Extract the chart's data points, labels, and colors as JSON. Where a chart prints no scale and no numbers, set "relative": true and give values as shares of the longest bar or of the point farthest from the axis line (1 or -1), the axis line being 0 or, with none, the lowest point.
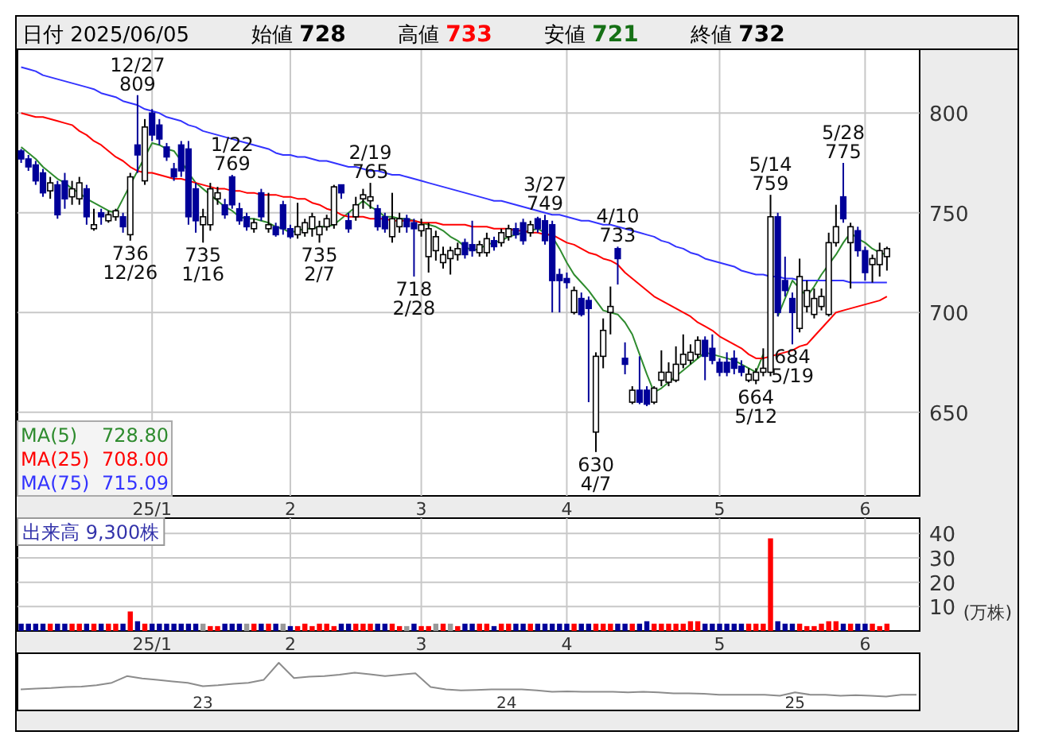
{
  "chart_data": [
    {
      "type": "candlestick",
      "title": "日付 2025/06/05",
      "categories": [
        null,
        null,
        null,
        null,
        null,
        null,
        null,
        null,
        null,
        null,
        null,
        null,
        null,
        null,
        null,
        null,
        null,
        null,
        "25/1",
        null,
        null,
        null,
        null,
        null,
        null,
        null,
        null,
        null,
        null,
        null,
        null,
        null,
        null,
        null,
        null,
        null,
        null,
        "2",
        null,
        null,
        null,
        null,
        null,
        null,
        null,
        null,
        null,
        null,
        null,
        null,
        null,
        null,
        null,
        null,
        null,
        "3",
        null,
        null,
        null,
        null,
        null,
        null,
        null,
        null,
        null,
        null,
        null,
        null,
        null,
        null,
        null,
        null,
        null,
        null,
        null,
        "4",
        null,
        null,
        null,
        null,
        null,
        null,
        null,
        null,
        null,
        null,
        null,
        null,
        null,
        null,
        null,
        null,
        null,
        null,
        null,
        null,
        "5",
        null,
        null,
        null,
        null,
        null,
        null,
        null,
        null,
        null,
        null,
        null,
        null,
        null,
        null,
        null,
        null,
        null,
        null,
        null,
        "6",
        null,
        null,
        null
      ],
      "annotations": [
        "始値 728",
        "高値 733",
        "安値 721",
        "終値 732",
        {
          "text": "736 12/26",
          "y": 736
        },
        {
          "text": "12/27 809",
          "y": 809
        },
        {
          "text": "735 1/16",
          "y": 735
        },
        {
          "text": "1/22 769",
          "y": 769
        },
        {
          "text": "735 2/7",
          "y": 735
        },
        {
          "text": "2/19 765",
          "y": 765
        },
        {
          "text": "718 2/28",
          "y": 718
        },
        {
          "text": "3/27 749",
          "y": 749
        },
        {
          "text": "630 4/7",
          "y": 630
        },
        {
          "text": "4/10 733",
          "y": 733
        },
        {
          "text": "664 5/12",
          "y": 664
        },
        {
          "text": "5/14 759",
          "y": 759
        },
        {
          "text": "684 5/19",
          "y": 684
        },
        {
          "text": "5/28 775",
          "y": 775
        }
      ],
      "ohlc": [
        [
          781,
          782,
          775,
          777
        ],
        [
          777,
          779,
          771,
          773
        ],
        [
          774,
          776,
          764,
          766
        ],
        [
          770,
          772,
          758,
          760
        ],
        [
          761,
          768,
          757,
          765
        ],
        [
          764,
          766,
          747,
          749
        ],
        [
          766,
          770,
          752,
          757
        ],
        [
          758,
          766,
          754,
          762
        ],
        [
          757,
          768,
          754,
          765
        ],
        [
          762,
          764,
          744,
          748
        ],
        [
          742,
          752,
          741,
          744
        ],
        [
          750,
          752,
          744,
          748
        ],
        [
          746,
          751,
          745,
          749
        ],
        [
          748,
          752,
          746,
          751
        ],
        [
          748,
          750,
          740,
          743
        ],
        [
          739,
          770,
          736,
          768
        ],
        [
          784,
          809,
          770,
          779
        ],
        [
          766,
          797,
          764,
          793
        ],
        [
          800,
          802,
          786,
          789
        ],
        [
          794,
          797,
          784,
          787
        ],
        [
          783,
          785,
          776,
          778
        ],
        [
          772,
          775,
          766,
          768
        ],
        [
          784,
          786,
          768,
          771
        ],
        [
          782,
          786,
          744,
          748
        ],
        [
          762,
          765,
          740,
          746
        ],
        [
          744,
          752,
          735,
          748
        ],
        [
          744,
          765,
          741,
          762
        ],
        [
          757,
          763,
          754,
          760
        ],
        [
          754,
          757,
          747,
          749
        ],
        [
          768,
          769,
          752,
          754
        ],
        [
          752,
          755,
          744,
          746
        ],
        [
          748,
          750,
          741,
          743
        ],
        [
          742,
          747,
          740,
          745
        ],
        [
          760,
          762,
          746,
          748
        ],
        [
          742,
          760,
          740,
          744
        ],
        [
          743,
          745,
          738,
          739
        ],
        [
          754,
          756,
          739,
          742
        ],
        [
          742,
          744,
          737,
          738
        ],
        [
          739,
          755,
          737,
          743
        ],
        [
          740,
          747,
          738,
          745
        ],
        [
          742,
          750,
          738,
          748
        ],
        [
          739,
          746,
          735,
          743
        ],
        [
          743,
          749,
          741,
          747
        ],
        [
          744,
          764,
          742,
          763
        ],
        [
          764,
          764,
          757,
          760
        ],
        [
          746,
          750,
          740,
          742
        ],
        [
          748,
          758,
          746,
          754
        ],
        [
          757,
          762,
          752,
          759
        ],
        [
          756,
          765,
          752,
          758
        ],
        [
          752,
          754,
          741,
          743
        ],
        [
          748,
          750,
          740,
          742
        ],
        [
          738,
          760,
          735,
          747
        ],
        [
          743,
          750,
          740,
          747
        ],
        [
          747,
          749,
          740,
          743
        ],
        [
          745,
          747,
          718,
          742
        ],
        [
          741,
          747,
          738,
          744
        ],
        [
          728,
          745,
          720,
          742
        ],
        [
          731,
          741,
          726,
          738
        ],
        [
          725,
          733,
          722,
          729
        ],
        [
          727,
          733,
          719,
          731
        ],
        [
          729,
          735,
          726,
          732
        ],
        [
          735,
          737,
          727,
          729
        ],
        [
          734,
          746,
          728,
          731
        ],
        [
          730,
          736,
          728,
          734
        ],
        [
          730,
          740,
          728,
          737
        ],
        [
          736,
          738,
          731,
          733
        ],
        [
          735,
          742,
          733,
          740
        ],
        [
          738,
          744,
          736,
          742
        ],
        [
          742,
          745,
          737,
          739
        ],
        [
          745,
          747,
          734,
          736
        ],
        [
          740,
          746,
          738,
          744
        ],
        [
          747,
          748,
          740,
          742
        ],
        [
          746,
          749,
          734,
          736
        ],
        [
          744,
          746,
          700,
          716
        ],
        [
          719,
          722,
          700,
          716
        ],
        [
          717,
          720,
          712,
          715
        ],
        [
          700,
          713,
          699,
          711
        ],
        [
          707,
          710,
          698,
          699
        ],
        [
          706,
          708,
          655,
          702
        ],
        [
          640,
          680,
          630,
          678
        ],
        [
          678,
          697,
          672,
          691
        ],
        [
          700,
          713,
          689,
          703
        ],
        [
          732,
          733,
          714,
          727
        ],
        [
          677,
          685,
          669,
          674
        ],
        [
          655,
          663,
          654,
          661
        ],
        [
          661,
          678,
          654,
          655
        ],
        [
          661,
          663,
          653,
          654
        ],
        [
          655,
          663,
          654,
          662
        ],
        [
          666,
          681,
          663,
          670
        ],
        [
          665,
          675,
          663,
          670
        ],
        [
          666,
          683,
          665,
          674
        ],
        [
          674,
          689,
          672,
          679
        ],
        [
          676,
          684,
          674,
          680
        ],
        [
          679,
          688,
          677,
          686
        ],
        [
          686,
          688,
          666,
          678
        ],
        [
          682,
          689,
          674,
          676
        ],
        [
          675,
          677,
          668,
          670
        ],
        [
          675,
          680,
          668,
          670
        ],
        [
          677,
          681,
          669,
          672
        ],
        [
          673,
          676,
          668,
          670
        ],
        [
          666,
          672,
          665,
          669
        ],
        [
          666,
          672,
          664,
          670
        ],
        [
          670,
          682,
          668,
          672
        ],
        [
          670,
          759,
          668,
          748
        ],
        [
          748,
          750,
          698,
          700
        ],
        [
          716,
          728,
          708,
          711
        ],
        [
          707,
          710,
          684,
          700
        ],
        [
          692,
          727,
          690,
          718
        ],
        [
          703,
          716,
          700,
          711
        ],
        [
          699,
          712,
          697,
          707
        ],
        [
          703,
          712,
          701,
          708
        ],
        [
          699,
          740,
          698,
          735
        ],
        [
          735,
          754,
          733,
          743
        ],
        [
          758,
          775,
          745,
          747
        ],
        [
          735,
          745,
          712,
          743
        ],
        [
          741,
          743,
          728,
          731
        ],
        [
          731,
          733,
          716,
          720
        ],
        [
          724,
          729,
          715,
          727
        ],
        [
          724,
          735,
          718,
          731
        ],
        [
          728,
          733,
          721,
          732
        ]
      ],
      "series": [
        {
          "name": "MA(5) 728.80",
          "type": "line",
          "color": "#2e8b2e",
          "values": [
            783,
            780,
            777,
            773,
            770,
            767,
            765,
            762,
            760,
            757,
            755,
            753,
            751,
            750,
            757,
            764,
            771,
            778,
            785,
            784,
            782,
            781,
            776,
            770,
            765,
            762,
            759,
            756,
            753,
            751,
            748,
            747,
            747,
            746,
            745,
            743,
            742,
            740,
            741,
            742,
            742,
            743,
            743,
            744,
            747,
            750,
            753,
            756,
            753,
            751,
            748,
            748,
            747,
            747,
            746,
            745,
            744,
            743,
            741,
            738,
            736,
            733,
            731,
            732,
            734,
            735,
            736,
            738,
            739,
            740,
            741,
            742,
            740,
            738,
            732,
            725,
            719,
            715,
            711,
            706,
            701,
            700,
            699,
            695,
            689,
            679,
            669,
            660,
            662,
            665,
            668,
            671,
            674,
            677,
            680,
            679,
            678,
            677,
            676,
            674,
            672,
            670,
            679,
            null,
            698,
            707,
            716,
            712,
            708,
            713,
            719,
            724,
            729,
            735,
            740,
            737,
            735,
            732,
            730,
            729
          ]
        },
        {
          "name": "MA(25) 708.00",
          "type": "line",
          "color": "#ff0000",
          "values": [
            800,
            799,
            798,
            798,
            797,
            796,
            795,
            794,
            791,
            789,
            786,
            784,
            781,
            778,
            776,
            773,
            771,
            770,
            770,
            769,
            768,
            767,
            767,
            766,
            765,
            764,
            763,
            762,
            762,
            761,
            761,
            760,
            760,
            759,
            759,
            759,
            758,
            758,
            757,
            757,
            755,
            754,
            752,
            751,
            749,
            748,
            748,
            748,
            747,
            747,
            747,
            746,
            746,
            746,
            746,
            745,
            745,
            745,
            744,
            744,
            744,
            744,
            743,
            743,
            743,
            742,
            742,
            742,
            741,
            741,
            740,
            740,
            739,
            739,
            737,
            735,
            734,
            732,
            730,
            729,
            727,
            726,
            724,
            720,
            717,
            714,
            711,
            708,
            706,
            704,
            702,
            700,
            698,
            695,
            693,
            691,
            688,
            686,
            684,
            682,
            679,
            677,
            677,
            678,
            679,
            680,
            681,
            683,
            684,
            688,
            692,
            696,
            700,
            701,
            702,
            703,
            704,
            705,
            706,
            708
          ]
        },
        {
          "name": "MA(75) 715.09",
          "type": "line",
          "color": "#3333ff",
          "values": [
            823,
            822,
            821,
            819,
            818,
            817,
            816,
            815,
            814,
            813,
            812,
            810,
            809,
            808,
            806,
            805,
            804,
            802,
            801,
            800,
            798,
            797,
            796,
            794,
            793,
            791,
            790,
            789,
            788,
            787,
            786,
            785,
            784,
            783,
            782,
            780,
            779,
            779,
            778,
            778,
            777,
            776,
            776,
            775,
            774,
            773,
            773,
            772,
            771,
            771,
            770,
            769,
            769,
            768,
            767,
            766,
            765,
            764,
            763,
            762,
            761,
            760,
            759,
            758,
            757,
            756,
            756,
            755,
            754,
            753,
            752,
            751,
            750,
            749,
            749,
            748,
            747,
            746,
            746,
            745,
            744,
            744,
            743,
            742,
            741,
            740,
            739,
            738,
            736,
            735,
            733,
            732,
            730,
            729,
            727,
            726,
            725,
            724,
            723,
            721,
            720,
            719,
            719,
            718,
            718,
            717,
            717,
            716,
            716,
            716,
            716,
            716,
            716,
            716,
            715,
            715,
            715,
            715,
            715,
            715
          ]
        }
      ],
      "ylim": [
        608,
        832
      ],
      "yticks": [
        650,
        700,
        750,
        800
      ],
      "grid": true,
      "legend": "bottom left"
    },
    {
      "type": "bar",
      "title": "出来高 9,300株",
      "ylabel": "(万株)",
      "categories": [
        null,
        null,
        null,
        null,
        null,
        null,
        null,
        null,
        null,
        null,
        null,
        null,
        null,
        null,
        null,
        null,
        null,
        null,
        "25/1",
        null,
        null,
        null,
        null,
        null,
        null,
        null,
        null,
        null,
        null,
        null,
        null,
        null,
        null,
        null,
        null,
        null,
        null,
        "2",
        null,
        null,
        null,
        null,
        null,
        null,
        null,
        null,
        null,
        null,
        null,
        null,
        null,
        null,
        null,
        null,
        null,
        "3",
        null,
        null,
        null,
        null,
        null,
        null,
        null,
        null,
        null,
        null,
        null,
        null,
        null,
        null,
        null,
        null,
        null,
        null,
        null,
        "4",
        null,
        null,
        null,
        null,
        null,
        null,
        null,
        null,
        null,
        null,
        null,
        null,
        null,
        null,
        null,
        null,
        null,
        null,
        null,
        null,
        "5",
        null,
        null,
        null,
        null,
        null,
        null,
        null,
        null,
        null,
        null,
        null,
        null,
        null,
        null,
        null,
        null,
        null,
        null,
        null,
        "6",
        null,
        null,
        null
      ],
      "values": [
        3,
        3,
        3,
        3,
        3,
        3,
        3,
        3,
        3,
        3,
        3,
        3,
        3,
        3,
        3,
        8,
        4,
        3,
        3,
        3,
        3,
        3,
        3,
        3,
        3,
        3,
        2,
        2,
        3,
        3,
        3,
        3,
        3,
        3,
        3,
        3,
        3,
        2,
        2,
        3,
        2,
        3,
        3,
        2,
        3,
        3,
        3,
        3,
        3,
        3,
        3,
        3,
        2,
        2,
        3,
        2,
        2,
        3,
        3,
        3,
        2,
        3,
        3,
        3,
        3,
        2,
        3,
        3,
        3,
        3,
        3,
        3,
        3,
        3,
        3,
        3,
        3,
        3,
        3,
        3,
        3,
        3,
        3,
        3,
        3,
        3,
        4,
        3,
        3,
        3,
        3,
        3,
        4,
        4,
        3,
        3,
        3,
        3,
        3,
        3,
        3,
        3,
        3,
        38,
        4,
        3,
        3,
        3,
        2,
        2,
        3,
        4,
        4,
        3,
        3,
        3,
        3,
        3,
        2,
        3
      ],
      "colors": [
        "#000099",
        "#000099",
        "#000099",
        "#000099",
        "#ff0000",
        "#000099",
        "#000099",
        "#ff0000",
        "#ff0000",
        "#000099",
        "#ff0000",
        "#000099",
        "#ff0000",
        "#ff0000",
        "#000099",
        "#ff0000",
        "#000099",
        "#ff0000",
        "#000099",
        "#000099",
        "#000099",
        "#000099",
        "#000099",
        "#000099",
        "#000099",
        "#999999",
        "#ff0000",
        "#ff0000",
        "#000099",
        "#000099",
        "#000099",
        "#999999",
        "#ff0000",
        "#000099",
        "#ff0000",
        "#000099",
        "#999999",
        "#000099",
        "#ff0000",
        "#ff0000",
        "#ff0000",
        "#ff0000",
        "#ff0000",
        "#ff0000",
        "#000099",
        "#000099",
        "#ff0000",
        "#ff0000",
        "#ff0000",
        "#000099",
        "#000099",
        "#ff0000",
        "#ff0000",
        "#999999",
        "#000099",
        "#ff0000",
        "#ff0000",
        "#999999",
        "#ff0000",
        "#999999",
        "#ff0000",
        "#000099",
        "#000099",
        "#ff0000",
        "#ff0000",
        "#000099",
        "#ff0000",
        "#ff0000",
        "#000099",
        "#000099",
        "#ff0000",
        "#000099",
        "#000099",
        "#000099",
        "#000099",
        "#000099",
        "#ff0000",
        "#000099",
        "#000099",
        "#ff0000",
        "#ff0000",
        "#ff0000",
        "#000099",
        "#000099",
        "#ff0000",
        "#000099",
        "#000099",
        "#ff0000",
        "#ff0000",
        "#ff0000",
        "#ff0000",
        "#ff0000",
        "#ff0000",
        "#ff0000",
        "#000099",
        "#000099",
        "#000099",
        "#000099",
        "#000099",
        "#000099",
        "#ff0000",
        "#ff0000",
        "#ff0000",
        "#ff0000",
        "#000099",
        "#000099",
        "#000099",
        "#ff0000",
        "#ff0000",
        "#ff0000",
        "#ff0000",
        "#ff0000",
        "#ff0000",
        "#000099",
        "#ff0000",
        "#000099",
        "#000099",
        "#ff0000",
        "#ff0000",
        "#ff0000"
      ],
      "ylim": [
        0,
        45
      ],
      "yticks": [
        10,
        20,
        30,
        40
      ],
      "grid": true
    },
    {
      "type": "line",
      "relative": true,
      "color": "#8c8c8c",
      "categories": [
        null,
        null,
        null,
        null,
        null,
        null,
        null,
        null,
        null,
        null,
        null,
        null,
        "23",
        null,
        null,
        null,
        null,
        null,
        null,
        null,
        null,
        null,
        null,
        null,
        null,
        null,
        null,
        null,
        null,
        null,
        null,
        null,
        "24",
        null,
        null,
        null,
        null,
        null,
        null,
        null,
        null,
        null,
        null,
        null,
        null,
        null,
        null,
        null,
        null,
        null,
        null,
        "25",
        null,
        null,
        null,
        null,
        null,
        null,
        null,
        null
      ],
      "values": [
        0.44,
        0.46,
        0.47,
        0.49,
        0.5,
        0.53,
        0.58,
        0.72,
        0.67,
        0.64,
        0.61,
        0.58,
        0.51,
        0.53,
        0.56,
        0.58,
        0.64,
        1,
        0.68,
        0.71,
        0.72,
        0.75,
        0.79,
        0.76,
        0.72,
        0.75,
        0.78,
        0.49,
        0.44,
        0.42,
        0.43,
        0.44,
        0.44,
        0.44,
        0.42,
        0.39,
        0.4,
        0.39,
        0.39,
        0.39,
        0.38,
        0.39,
        0.38,
        0.36,
        0.36,
        0.35,
        0.33,
        0.33,
        0.33,
        0.33,
        0.31,
        0.38,
        0.33,
        0.33,
        0.31,
        0.32,
        0.31,
        0.29,
        0.33,
        0.33
      ]
    }
  ]
}
